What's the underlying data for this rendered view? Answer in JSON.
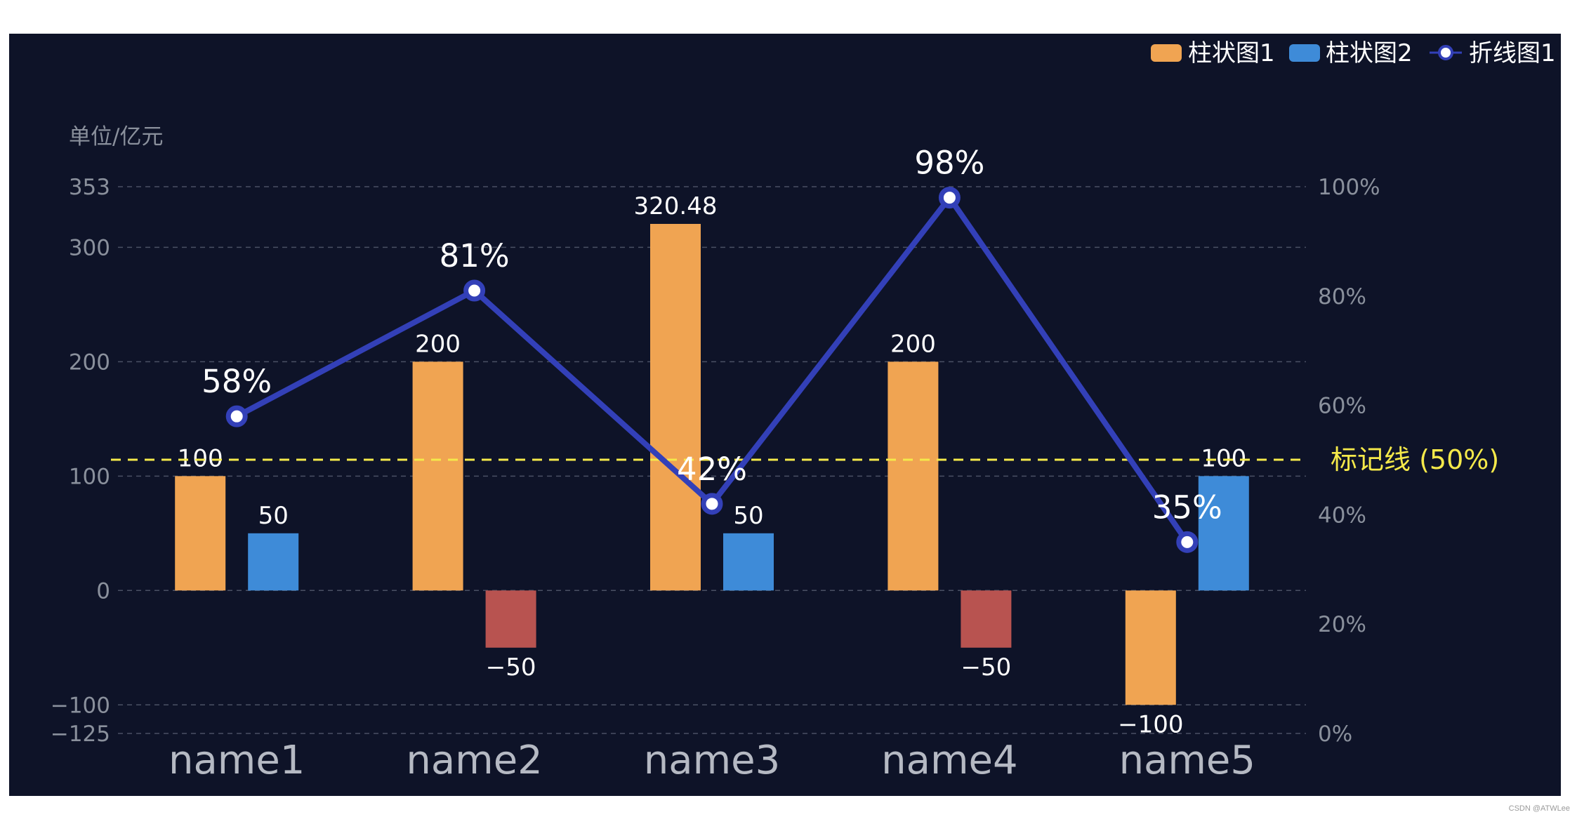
{
  "chart_data": {
    "type": "bar",
    "categories": [
      "name1",
      "name2",
      "name3",
      "name4",
      "name5"
    ],
    "y_left": {
      "unit_label": "单位/亿元",
      "ticks": [
        353,
        300,
        200,
        100,
        0,
        -100,
        -125
      ],
      "ylim": [
        -125,
        353
      ]
    },
    "y_right": {
      "ticks": [
        "100%",
        "80%",
        "60%",
        "40%",
        "20%",
        "0%"
      ],
      "ylim": [
        0,
        100
      ]
    },
    "series": [
      {
        "name": "柱状图1",
        "type": "bar",
        "color": "#F0A452",
        "values": [
          100,
          200,
          320.48,
          200,
          -100
        ],
        "labels": [
          "100",
          "200",
          "320.48",
          "200",
          "−100"
        ]
      },
      {
        "name": "柱状图2",
        "type": "bar",
        "color": "#3E8BD8",
        "negative_color": "#B85350",
        "values": [
          50,
          -50,
          50,
          -50,
          100
        ],
        "labels": [
          "50",
          "−50",
          "50",
          "−50",
          "100"
        ]
      },
      {
        "name": "折线图1",
        "type": "line",
        "axis": "right",
        "color": "#3340B8",
        "values": [
          58,
          81,
          42,
          98,
          35
        ],
        "labels": [
          "58%",
          "81%",
          "42%",
          "98%",
          "35%"
        ]
      }
    ],
    "mark_line": {
      "label": "标记线 (50%)",
      "axis": "right",
      "value": 50,
      "color": "#F5E94A"
    },
    "grid": true,
    "legend_position": "top-right",
    "background": "#0E1328"
  },
  "watermark": "CSDN @ATWLee"
}
